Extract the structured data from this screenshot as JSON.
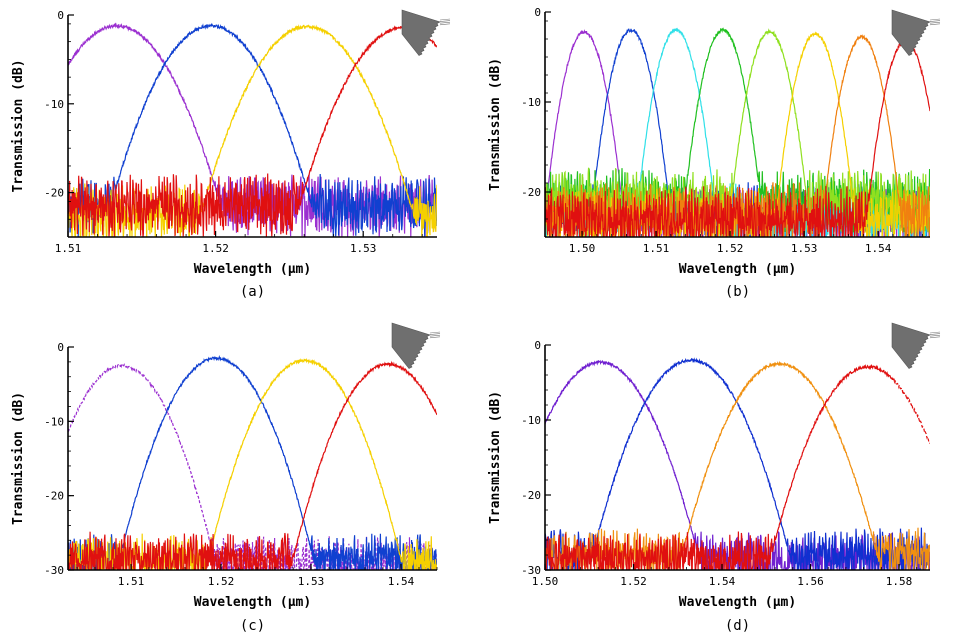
{
  "chart_data": [
    {
      "type": "line",
      "panel": "(a)",
      "xlabel": "Wavelength (µm)",
      "ylabel": "Transmission (dB)",
      "xlim": [
        1.51,
        1.535
      ],
      "ylim": [
        -25,
        0
      ],
      "xticks": [
        1.51,
        1.52,
        1.53
      ],
      "xtick_labels": [
        "1.51",
        "1.52",
        "1.53"
      ],
      "yticks": [
        0,
        -10,
        -20
      ],
      "ytick_labels": [
        "0",
        "-10",
        "-20"
      ],
      "grid": false,
      "series": [
        {
          "color": "#9b30d0",
          "style": "solid",
          "center": 1.5133,
          "peak": -1.2,
          "width": 0.0028,
          "floor": -21.5
        },
        {
          "color": "#1040d0",
          "style": "solid",
          "center": 1.5197,
          "peak": -1.2,
          "width": 0.0027,
          "floor": -21.5
        },
        {
          "color": "#f5d000",
          "style": "solid",
          "center": 1.5262,
          "peak": -1.3,
          "width": 0.0028,
          "floor": -22.5
        },
        {
          "color": "#e01010",
          "style": "solid",
          "center": 1.5327,
          "peak": -1.4,
          "width": 0.0028,
          "floor": -21.5
        }
      ]
    },
    {
      "type": "line",
      "panel": "(b)",
      "xlabel": "Wavelength (µm)",
      "ylabel": "Transmission (dB)",
      "xlim": [
        1.495,
        1.547
      ],
      "ylim": [
        -25,
        0
      ],
      "xticks": [
        1.5,
        1.51,
        1.52,
        1.53,
        1.54
      ],
      "xtick_labels": [
        "1.50",
        "1.51",
        "1.52",
        "1.53",
        "1.54"
      ],
      "yticks": [
        0,
        -10,
        -20
      ],
      "ytick_labels": [
        "0",
        "-10",
        "-20"
      ],
      "grid": false,
      "series": [
        {
          "color": "#9b30d0",
          "style": "solid",
          "center": 1.5003,
          "peak": -2.2,
          "width": 0.0021,
          "floor": -23.0
        },
        {
          "color": "#1040d0",
          "style": "solid",
          "center": 1.5066,
          "peak": -2.0,
          "width": 0.0021,
          "floor": -22.5
        },
        {
          "color": "#30e0e8",
          "style": "solid",
          "center": 1.5127,
          "peak": -2.0,
          "width": 0.0021,
          "floor": -22.5
        },
        {
          "color": "#20c020",
          "style": "solid",
          "center": 1.519,
          "peak": -2.0,
          "width": 0.0021,
          "floor": -21.0
        },
        {
          "color": "#90e020",
          "style": "solid",
          "center": 1.5253,
          "peak": -2.2,
          "width": 0.0021,
          "floor": -21.0
        },
        {
          "color": "#f5d000",
          "style": "solid",
          "center": 1.5315,
          "peak": -2.4,
          "width": 0.0021,
          "floor": -23.0
        },
        {
          "color": "#f08010",
          "style": "solid",
          "center": 1.5378,
          "peak": -2.8,
          "width": 0.0021,
          "floor": -22.5
        },
        {
          "color": "#e01010",
          "style": "solid",
          "center": 1.5437,
          "peak": -3.2,
          "width": 0.0021,
          "floor": -23.0
        }
      ]
    },
    {
      "type": "line",
      "panel": "(c)",
      "xlabel": "Wavelength (µm)",
      "ylabel": "Transmission (dB)",
      "xlim": [
        1.503,
        1.544
      ],
      "ylim": [
        -30,
        0
      ],
      "xticks": [
        1.51,
        1.52,
        1.53,
        1.54
      ],
      "xtick_labels": [
        "1.51",
        "1.52",
        "1.53",
        "1.54"
      ],
      "yticks": [
        0,
        -10,
        -20,
        -30
      ],
      "ytick_labels": [
        "0",
        "-10",
        "-20",
        "-30"
      ],
      "grid": false,
      "series": [
        {
          "color": "#9b30d0",
          "style": "dashed",
          "center": 1.509,
          "peak": -2.5,
          "width": 0.0036,
          "floor": -29.0
        },
        {
          "color": "#1040d0",
          "style": "solid",
          "center": 1.5195,
          "peak": -1.5,
          "width": 0.0037,
          "floor": -28.5
        },
        {
          "color": "#f5d000",
          "style": "solid",
          "center": 1.5293,
          "peak": -1.8,
          "width": 0.0037,
          "floor": -28.8
        },
        {
          "color": "#e01010",
          "style": "solid",
          "center": 1.5386,
          "peak": -2.3,
          "width": 0.0037,
          "floor": -28.5
        }
      ]
    },
    {
      "type": "line",
      "panel": "(d)",
      "xlabel": "Wavelength (µm)",
      "ylabel": "Transmission (dB)",
      "xlim": [
        1.5,
        1.587
      ],
      "ylim": [
        -30,
        0
      ],
      "xticks": [
        1.5,
        1.52,
        1.54,
        1.56,
        1.58
      ],
      "xtick_labels": [
        "1.50",
        "1.52",
        "1.54",
        "1.56",
        "1.58"
      ],
      "yticks": [
        0,
        -10,
        -20,
        -30
      ],
      "ytick_labels": [
        "0",
        "-10",
        "-20",
        "-30"
      ],
      "grid": false,
      "series": [
        {
          "color": "#7020d0",
          "style": "solid",
          "center": 1.5125,
          "peak": -2.3,
          "width": 0.0078,
          "floor": -28.5
        },
        {
          "color": "#1030d0",
          "style": "solid",
          "center": 1.533,
          "peak": -2.0,
          "width": 0.0078,
          "floor": -28.0
        },
        {
          "color": "#f09010",
          "style": "solid",
          "center": 1.553,
          "peak": -2.5,
          "width": 0.0078,
          "floor": -28.0
        },
        {
          "color": "#e01010",
          "style": "solid",
          "center": 1.573,
          "peak": -2.9,
          "width": 0.0078,
          "floor": -28.5,
          "dashed_tail_from": 1.579
        }
      ]
    }
  ]
}
